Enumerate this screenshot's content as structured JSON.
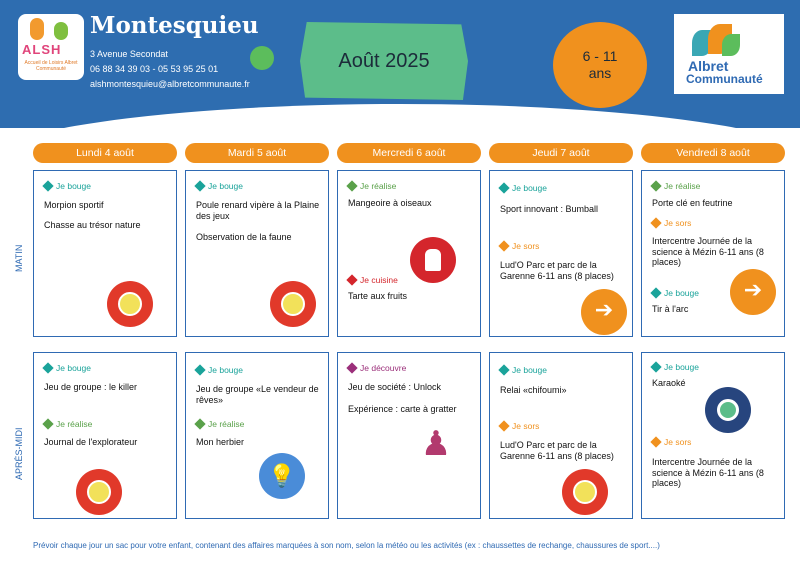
{
  "header": {
    "logo_letters": "ALSH",
    "logo_sub": "Accueil de Loisirs Albret Communauté",
    "title": "Montesquieu",
    "address": "3 Avenue Secondat",
    "phones": "06 88 34 39 03  -  05 53 95 25 01",
    "email": "alshmontesquieu@albretcommunaute.fr",
    "month": "Août 2025",
    "age_line1": "6 - 11",
    "age_line2": "ans",
    "albret_line1": "Albret",
    "albret_line2": "Communauté"
  },
  "sections": {
    "morning": "MATIN",
    "afternoon": "APRÈS-MIDI"
  },
  "days": [
    "Lundi 4 août",
    "Mardi 5 août",
    "Mercredi 6 août",
    "Jeudi 7 août",
    "Vendredi 8 août"
  ],
  "tags": {
    "bouge": "Je bouge",
    "realise": "Je réalise",
    "sors": "Je sors",
    "cuisine": "Je cuisine",
    "decouvre": "Je découvre"
  },
  "colors": {
    "bouge": "#1aa39a",
    "realise": "#5aa14a",
    "sors": "#f0911e",
    "cuisine": "#d4262c",
    "decouvre": "#9b2f7a",
    "blue": "#2f6ab3",
    "orange": "#f0911e"
  },
  "morning": {
    "mon": {
      "a1": "Morpion sportif",
      "a2": "Chasse au trésor nature",
      "icon": "ball-icon"
    },
    "tue": {
      "a1": "Poule renard vipère à la Plaine des jeux",
      "a2": "Observation de la faune",
      "icon": "ball-icon"
    },
    "wed": {
      "a1": "Mangeoire à oiseaux",
      "a2": "Tarte aux fruits",
      "icon": "chef-icon"
    },
    "thu": {
      "a1": "Sport innovant : Bumball",
      "a2": "Lud'O Parc et parc de la Garenne 6-11 ans (8 places)",
      "icon": "exit-icon"
    },
    "fri": {
      "a1": "Porte clé en feutrine",
      "a2": "Intercentre Journée de la science à Mézin 6-11 ans (8 places)",
      "a3": "Tir à l'arc",
      "icon": "exit-icon"
    }
  },
  "afternoon": {
    "mon": {
      "a1": "Jeu de groupe : le killer",
      "a2": "Journal de l'explorateur",
      "icon": "ball-icon"
    },
    "tue": {
      "a1": "Jeu de groupe «Le vendeur de rêves»",
      "a2": "Mon herbier",
      "icon": "idea-icon"
    },
    "wed": {
      "a1": "Jeu de société : Unlock",
      "a2": "Expérience : carte à gratter",
      "icon": "pawn-icon"
    },
    "thu": {
      "a1": "Relai «chifoumi»",
      "a2": "Lud'O Parc et parc de la Garenne 6-11 ans (8 places)",
      "icon": "ball-icon"
    },
    "fri": {
      "a1": "Karaoké",
      "a2": "Intercentre Journée de la science à Mézin 6-11 ans (8 places)",
      "icon": "karaoke-icon"
    }
  },
  "footer": "Prévoir chaque jour un sac pour votre enfant, contenant des affaires marquées à son nom, selon la météo ou les activités (ex : chaussettes de rechange, chaussures de sport....)"
}
